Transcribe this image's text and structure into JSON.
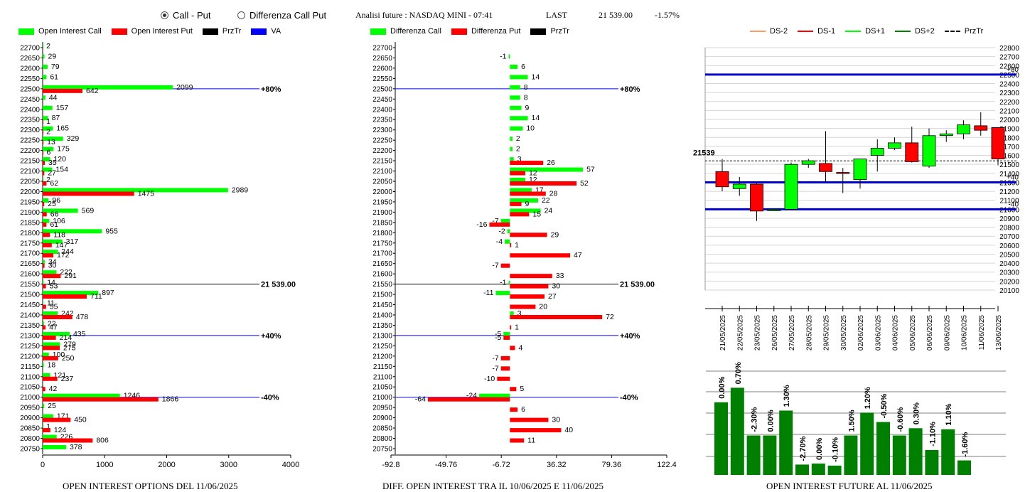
{
  "header": {
    "radio_call_put": "Call - Put",
    "radio_diff": "Differenza Call Put",
    "title": "Analisi future : NASDAQ MINI - 07:41",
    "last_label": "LAST",
    "last_value": "21 539.00",
    "last_change": "-1.57%"
  },
  "legend_left": {
    "oi_call": "Open Interest Call",
    "oi_put": "Open Interest Put",
    "prztr": "PrzTr",
    "va": "VA"
  },
  "legend_mid": {
    "diff_call": "Differenza Call",
    "diff_put": "Differenza Put",
    "prztr": "PrzTr"
  },
  "legend_right": {
    "ds_m2": "DS-2",
    "ds_m1": "DS-1",
    "ds_p1": "DS+1",
    "ds_p2": "DS+2",
    "prztr": "PrzTr"
  },
  "captions": {
    "left": "OPEN INTEREST OPTIONS DEL 11/06/2025",
    "mid": "DIFF. OPEN INTEREST TRA IL 10/06/2025 E 11/06/2025",
    "right": "OPEN INTEREST FUTURE AL 11/06/2025"
  },
  "colors": {
    "call": "#00ff00",
    "put": "#ff0000",
    "prztr": "#000000",
    "va": "#0000ff",
    "oi_bar": "#008000",
    "candle_up": "#00ff00",
    "candle_down": "#ff0000",
    "band": "#0000cc"
  },
  "chart_data": [
    {
      "type": "bar",
      "orientation": "horizontal",
      "strikes": [
        22700,
        22650,
        22600,
        22550,
        22500,
        22450,
        22400,
        22350,
        22300,
        22250,
        22200,
        22150,
        22100,
        22050,
        22000,
        21950,
        21900,
        21850,
        21800,
        21750,
        21700,
        21650,
        21600,
        21550,
        21500,
        21450,
        21400,
        21350,
        21300,
        21250,
        21200,
        21150,
        21100,
        21050,
        21000,
        20950,
        20900,
        20850,
        20800,
        20750
      ],
      "series": [
        {
          "name": "Open Interest Call",
          "values": [
            2,
            29,
            79,
            61,
            2099,
            44,
            157,
            87,
            165,
            329,
            175,
            120,
            154,
            2,
            2989,
            96,
            569,
            106,
            955,
            317,
            244,
            34,
            222,
            14,
            897,
            11,
            242,
            22,
            435,
            279,
            100,
            18,
            121,
            null,
            1246,
            25,
            171,
            1,
            226,
            378
          ]
        },
        {
          "name": "Open Interest Put",
          "values": [
            null,
            null,
            null,
            null,
            642,
            null,
            null,
            1,
            2,
            13,
            6,
            35,
            27,
            62,
            1475,
            25,
            66,
            61,
            118,
            147,
            172,
            30,
            291,
            53,
            711,
            55,
            478,
            47,
            214,
            275,
            250,
            null,
            237,
            42,
            1866,
            null,
            450,
            124,
            806,
            null
          ]
        }
      ],
      "xticks": [
        "0",
        "1000",
        "2000",
        "3000",
        "4000"
      ],
      "xlim": [
        0,
        4000
      ],
      "annotations": [
        {
          "strike": 22500,
          "label": "+80%"
        },
        {
          "strike": 21550,
          "label": "21 539.00"
        },
        {
          "strike": 21300,
          "label": "+40%"
        },
        {
          "strike": 21000,
          "label": "-40%"
        }
      ]
    },
    {
      "type": "bar",
      "orientation": "horizontal",
      "strikes": [
        22700,
        22650,
        22600,
        22550,
        22500,
        22450,
        22400,
        22350,
        22300,
        22250,
        22200,
        22150,
        22100,
        22050,
        22000,
        21950,
        21900,
        21850,
        21800,
        21750,
        21700,
        21650,
        21600,
        21550,
        21500,
        21450,
        21400,
        21350,
        21300,
        21250,
        21200,
        21150,
        21100,
        21050,
        21000,
        20950,
        20900,
        20850,
        20800,
        20750
      ],
      "series": [
        {
          "name": "Differenza Call",
          "values": [
            null,
            -1,
            6,
            14,
            8,
            8,
            9,
            14,
            10,
            2,
            2,
            3,
            57,
            12,
            17,
            22,
            24,
            -7,
            -2,
            -4,
            null,
            null,
            null,
            -1,
            -11,
            null,
            3,
            null,
            -5,
            null,
            null,
            null,
            null,
            null,
            -24,
            null,
            null,
            null,
            null,
            null
          ]
        },
        {
          "name": "Differenza Put",
          "values": [
            null,
            null,
            null,
            null,
            null,
            null,
            null,
            null,
            null,
            null,
            null,
            26,
            12,
            52,
            28,
            9,
            15,
            -16,
            29,
            1,
            47,
            -7,
            33,
            30,
            27,
            20,
            72,
            1,
            -5,
            4,
            -7,
            -7,
            -10,
            5,
            -64,
            6,
            30,
            40,
            11,
            null
          ]
        }
      ],
      "xticks": [
        "-92.8",
        "-49.76",
        "-6.72",
        "36.32",
        "79.36",
        "122.4"
      ],
      "xlim": [
        -92.8,
        122.4
      ],
      "annotations": [
        {
          "strike": 22500,
          "label": "+80%"
        },
        {
          "strike": 21550,
          "label": "21 539.00"
        },
        {
          "strike": 21300,
          "label": "+40%"
        },
        {
          "strike": 21000,
          "label": "-40%"
        }
      ]
    },
    {
      "type": "candlestick",
      "categories": [
        "21/05/2025",
        "22/05/2025",
        "23/05/2025",
        "26/05/2025",
        "27/05/2025",
        "28/05/2025",
        "29/05/2025",
        "30/05/2025",
        "02/06/2025",
        "03/06/2025",
        "04/06/2025",
        "05/06/2025",
        "06/06/2025",
        "09/06/2025",
        "10/06/2025",
        "11/06/2025",
        "13/06/2025"
      ],
      "candles": [
        {
          "o": 21420,
          "h": 21560,
          "l": 21200,
          "c": 21250
        },
        {
          "o": 21230,
          "h": 21360,
          "l": 21150,
          "c": 21280
        },
        {
          "o": 21280,
          "h": 21300,
          "l": 20870,
          "c": 20980
        },
        {
          "o": 20990,
          "h": 21000,
          "l": 20990,
          "c": 20995
        },
        {
          "o": 21000,
          "h": 21520,
          "l": 20990,
          "c": 21500
        },
        {
          "o": 21500,
          "h": 21560,
          "l": 21460,
          "c": 21540
        },
        {
          "o": 21510,
          "h": 21870,
          "l": 21300,
          "c": 21420
        },
        {
          "o": 21410,
          "h": 21460,
          "l": 21180,
          "c": 21400
        },
        {
          "o": 21330,
          "h": 21560,
          "l": 21230,
          "c": 21560
        },
        {
          "o": 21600,
          "h": 21780,
          "l": 21420,
          "c": 21680
        },
        {
          "o": 21680,
          "h": 21800,
          "l": 21660,
          "c": 21740
        },
        {
          "o": 21740,
          "h": 21920,
          "l": 21520,
          "c": 21530
        },
        {
          "o": 21480,
          "h": 21900,
          "l": 21460,
          "c": 21820
        },
        {
          "o": 21820,
          "h": 21880,
          "l": 21750,
          "c": 21840
        },
        {
          "o": 21840,
          "h": 21990,
          "l": 21780,
          "c": 21940
        },
        {
          "o": 21930,
          "h": 22080,
          "l": 21820,
          "c": 21880
        },
        {
          "o": 21910,
          "h": 21910,
          "l": 21490,
          "c": 21560
        }
      ],
      "yticks": [
        22800,
        22700,
        22600,
        22500,
        22400,
        22300,
        22200,
        22100,
        22000,
        21900,
        21800,
        21700,
        21600,
        21500,
        21400,
        21300,
        21200,
        21100,
        21000,
        20900,
        20800,
        20700,
        20600,
        20500,
        20400,
        20300,
        20200,
        20100
      ],
      "ylim": [
        20100,
        22800
      ],
      "prztr": 21539,
      "prztr_label": "21539",
      "bands": [
        {
          "y": 22500,
          "label": "+80"
        },
        {
          "y": 21300,
          "label": "+40"
        },
        {
          "y": 21000,
          "label": "-40"
        }
      ]
    },
    {
      "type": "bar",
      "categories": [
        "21/05/2025",
        "22/05/2025",
        "23/05/2025",
        "26/05/2025",
        "27/05/2025",
        "28/05/2025",
        "29/05/2025",
        "30/05/2025",
        "02/06/2025",
        "03/06/2025",
        "04/06/2025",
        "05/06/2025",
        "06/06/2025",
        "09/06/2025",
        "10/06/2025",
        "11/06/2025"
      ],
      "values": [
        0.7,
        0.84,
        0.38,
        0.38,
        0.62,
        0.1,
        0.11,
        0.09,
        0.38,
        0.6,
        0.51,
        0.38,
        0.45,
        0.24,
        0.44,
        0.14
      ],
      "value_unit": "fraction of plot height (unlabelled axis)",
      "labels": [
        "0.00%",
        "0.70%",
        "-2.30%",
        "0.00%",
        "1.30%",
        "-2.70%",
        "0.00%",
        "-0.10%",
        "1.50%",
        "1.20%",
        "-0.50%",
        "-0.60%",
        "0.30%",
        "-1.10%",
        "1.10%",
        "-1.60%"
      ]
    }
  ]
}
